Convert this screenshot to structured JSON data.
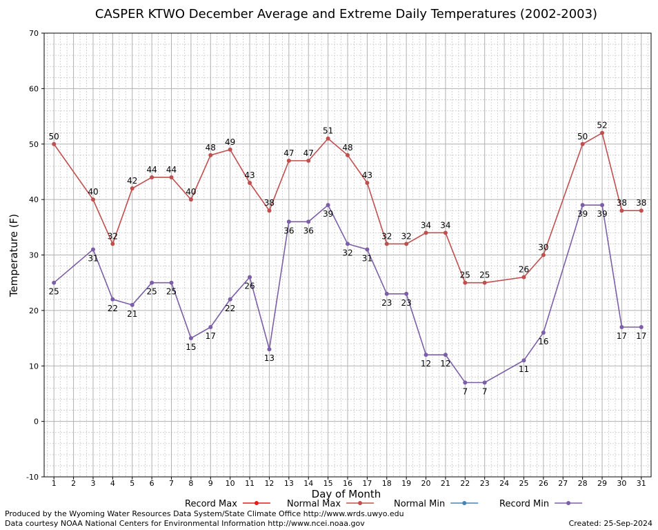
{
  "chart_data": {
    "type": "line",
    "title": "CASPER KTWO December Average and Extreme Daily Temperatures (2002-2003)",
    "xlabel": "Day of Month",
    "ylabel": "Temperature (F)",
    "ylim": [
      -10,
      70
    ],
    "yticks": [
      -10,
      0,
      10,
      20,
      30,
      40,
      50,
      60,
      70
    ],
    "categories": [
      1,
      2,
      3,
      4,
      5,
      6,
      7,
      8,
      9,
      10,
      11,
      12,
      13,
      14,
      15,
      16,
      17,
      18,
      19,
      20,
      21,
      22,
      23,
      24,
      25,
      26,
      27,
      28,
      29,
      30,
      31
    ],
    "legend": [
      "Record Max",
      "Normal Max",
      "Normal Min",
      "Record Min"
    ],
    "legend_colors": [
      "#e41a1c",
      "#c14e4e",
      "#4682b4",
      "#7b5ea7"
    ],
    "grid": true,
    "series": [
      {
        "name": "Normal Max",
        "color": "#c14e4e",
        "points": [
          [
            1,
            50
          ],
          [
            3,
            40
          ],
          [
            4,
            32
          ],
          [
            5,
            42
          ],
          [
            6,
            44
          ],
          [
            7,
            44
          ],
          [
            8,
            40
          ],
          [
            9,
            48
          ],
          [
            10,
            49
          ],
          [
            11,
            43
          ],
          [
            12,
            38
          ],
          [
            13,
            47
          ],
          [
            14,
            47
          ],
          [
            15,
            51
          ],
          [
            16,
            48
          ],
          [
            17,
            43
          ],
          [
            18,
            32
          ],
          [
            19,
            32
          ],
          [
            20,
            34
          ],
          [
            21,
            34
          ],
          [
            22,
            25
          ],
          [
            23,
            25
          ],
          [
            25,
            26
          ],
          [
            26,
            30
          ],
          [
            28,
            50
          ],
          [
            29,
            52
          ],
          [
            30,
            38
          ],
          [
            31,
            38
          ]
        ]
      },
      {
        "name": "Record Min",
        "color": "#7b5ea7",
        "points": [
          [
            1,
            25
          ],
          [
            3,
            31
          ],
          [
            4,
            22
          ],
          [
            5,
            21
          ],
          [
            6,
            25
          ],
          [
            7,
            25
          ],
          [
            8,
            15
          ],
          [
            9,
            17
          ],
          [
            10,
            22
          ],
          [
            11,
            26
          ],
          [
            12,
            13
          ],
          [
            13,
            36
          ],
          [
            14,
            36
          ],
          [
            15,
            39
          ],
          [
            16,
            32
          ],
          [
            17,
            31
          ],
          [
            18,
            23
          ],
          [
            19,
            23
          ],
          [
            20,
            12
          ],
          [
            21,
            12
          ],
          [
            22,
            7
          ],
          [
            23,
            7
          ],
          [
            25,
            11
          ],
          [
            26,
            16
          ],
          [
            28,
            39
          ],
          [
            29,
            39
          ],
          [
            30,
            17
          ],
          [
            31,
            17
          ]
        ]
      }
    ]
  },
  "footer": {
    "line1": "Produced by the Wyoming Water Resources Data System/State Climate Office http://www.wrds.uwyo.edu",
    "line2": "Data courtesy NOAA National Centers for Environmental Information http://www.ncei.noaa.gov",
    "created": "Created: 25-Sep-2024"
  }
}
